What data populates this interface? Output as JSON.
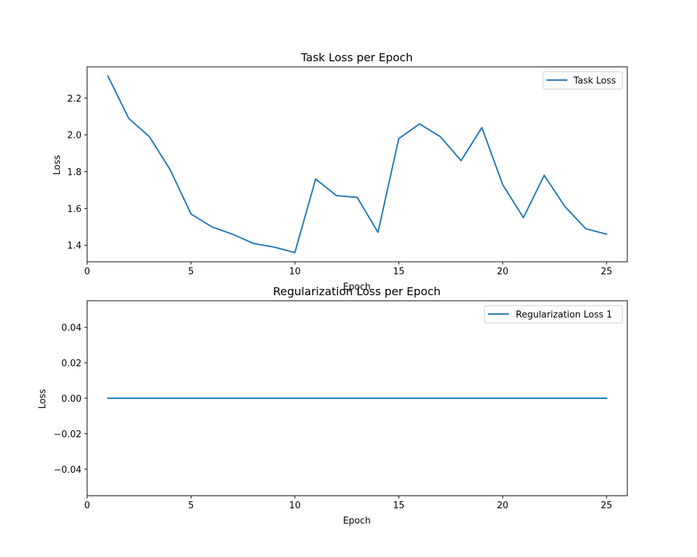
{
  "figure": {
    "background": "#ffffff"
  },
  "chart_data": [
    {
      "type": "line",
      "title": "Task Loss per Epoch",
      "xlabel": "Epoch",
      "ylabel": "Loss",
      "xlim": [
        0,
        26
      ],
      "ylim": [
        1.31,
        2.37
      ],
      "xticks": [
        0,
        5,
        10,
        15,
        20,
        25
      ],
      "yticks": [
        1.4,
        1.6,
        1.8,
        2.0,
        2.2
      ],
      "ytick_labels": [
        "1.4",
        "1.6",
        "1.8",
        "2.0",
        "2.2"
      ],
      "grid": false,
      "legend": "upper-right",
      "series": [
        {
          "name": "Task Loss",
          "color": "#1f77b4",
          "x": [
            1,
            2,
            3,
            4,
            5,
            6,
            7,
            8,
            9,
            10,
            11,
            12,
            13,
            14,
            15,
            16,
            17,
            18,
            19,
            20,
            21,
            22,
            23,
            24,
            25
          ],
          "y": [
            2.32,
            2.09,
            1.99,
            1.81,
            1.57,
            1.5,
            1.46,
            1.41,
            1.39,
            1.36,
            1.76,
            1.67,
            1.66,
            1.47,
            1.98,
            2.06,
            1.99,
            1.86,
            2.04,
            1.73,
            1.55,
            1.78,
            1.61,
            1.49,
            1.46
          ]
        }
      ]
    },
    {
      "type": "line",
      "title": "Regularization Loss per Epoch",
      "xlabel": "Epoch",
      "ylabel": "Loss",
      "xlim": [
        0,
        26
      ],
      "ylim": [
        -0.055,
        0.055
      ],
      "xticks": [
        0,
        5,
        10,
        15,
        20,
        25
      ],
      "yticks": [
        -0.04,
        -0.02,
        0.0,
        0.02,
        0.04
      ],
      "ytick_labels": [
        "−0.04",
        "−0.02",
        "0.00",
        "0.02",
        "0.04"
      ],
      "grid": false,
      "legend": "upper-right",
      "series": [
        {
          "name": "Regularization Loss 1",
          "color": "#1f77b4",
          "x": [
            1,
            2,
            3,
            4,
            5,
            6,
            7,
            8,
            9,
            10,
            11,
            12,
            13,
            14,
            15,
            16,
            17,
            18,
            19,
            20,
            21,
            22,
            23,
            24,
            25
          ],
          "y": [
            0,
            0,
            0,
            0,
            0,
            0,
            0,
            0,
            0,
            0,
            0,
            0,
            0,
            0,
            0,
            0,
            0,
            0,
            0,
            0,
            0,
            0,
            0,
            0,
            0
          ]
        }
      ]
    }
  ]
}
